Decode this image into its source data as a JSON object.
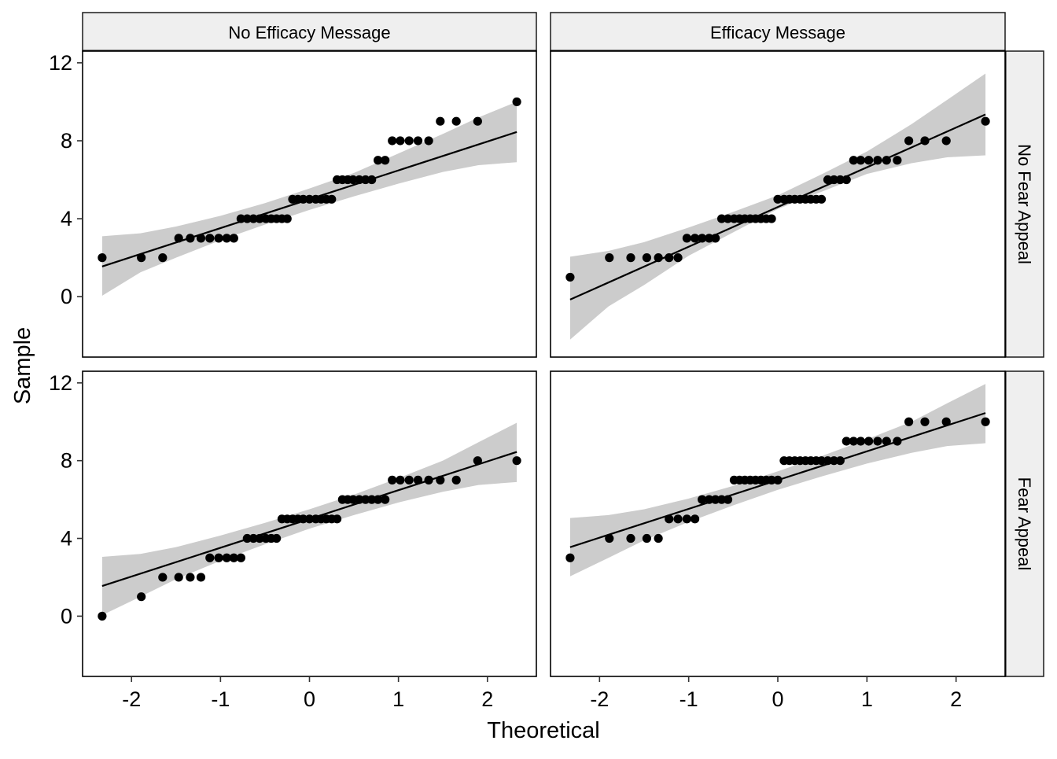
{
  "chart_data": {
    "type": "scatter",
    "kind": "qq-plot-faceted",
    "xlabel": "Theoretical",
    "ylabel": "Sample",
    "xlim": [
      -2.55,
      2.55
    ],
    "ylim": [
      -3.1,
      12.6
    ],
    "xticks": [
      -2,
      -1,
      0,
      1,
      2
    ],
    "xtick_labels": [
      "-2",
      "-1",
      "0",
      "1",
      "2"
    ],
    "yticks": [
      0,
      4,
      8,
      12
    ],
    "ytick_labels": [
      "0",
      "4",
      "8",
      "12"
    ],
    "column_strips": [
      "No Efficacy Message",
      "Efficacy Message"
    ],
    "row_strips": [
      "No Fear Appeal",
      "Fear Appeal"
    ],
    "grid": false,
    "colors": {
      "points": "#000000",
      "line": "#000000",
      "band": "#cccccc",
      "strip_fill": "#efefef",
      "panel_border": "#000000"
    },
    "panels": [
      {
        "row": 0,
        "col": 0,
        "x": [
          -2.33,
          -1.89,
          -1.65,
          -1.47,
          -1.34,
          -1.22,
          -1.12,
          -1.02,
          -0.93,
          -0.85,
          -0.77,
          -0.7,
          -0.63,
          -0.56,
          -0.49,
          -0.43,
          -0.37,
          -0.31,
          -0.25,
          -0.19,
          -0.13,
          -0.07,
          0.0,
          0.07,
          0.13,
          0.19,
          0.25,
          0.31,
          0.37,
          0.43,
          0.49,
          0.56,
          0.63,
          0.7,
          0.77,
          0.85,
          0.93,
          1.02,
          1.12,
          1.22,
          1.34,
          1.47,
          1.65,
          1.89,
          2.33
        ],
        "y": [
          2,
          2,
          2,
          3,
          3,
          3,
          3,
          3,
          3,
          3,
          4,
          4,
          4,
          4,
          4,
          4,
          4,
          4,
          4,
          5,
          5,
          5,
          5,
          5,
          5,
          5,
          5,
          6,
          6,
          6,
          6,
          6,
          6,
          6,
          7,
          7,
          8,
          8,
          8,
          8,
          8,
          9,
          9,
          9,
          10
        ],
        "line": [
          [
            -2.33,
            1.55
          ],
          [
            2.33,
            8.45
          ]
        ],
        "band_upper": [
          [
            -2.33,
            3.1
          ],
          [
            -1.9,
            3.25
          ],
          [
            -1.5,
            3.6
          ],
          [
            -1.0,
            4.15
          ],
          [
            -0.5,
            4.8
          ],
          [
            0.0,
            5.55
          ],
          [
            0.5,
            6.35
          ],
          [
            1.0,
            7.35
          ],
          [
            1.5,
            8.35
          ],
          [
            1.9,
            9.2
          ],
          [
            2.33,
            10.0
          ]
        ],
        "band_lower": [
          [
            -2.33,
            0.05
          ],
          [
            -1.9,
            1.25
          ],
          [
            -1.5,
            2.0
          ],
          [
            -1.0,
            2.9
          ],
          [
            -0.5,
            3.7
          ],
          [
            0.0,
            4.45
          ],
          [
            0.5,
            5.15
          ],
          [
            1.0,
            5.8
          ],
          [
            1.5,
            6.4
          ],
          [
            1.9,
            6.75
          ],
          [
            2.33,
            6.9
          ]
        ]
      },
      {
        "row": 0,
        "col": 1,
        "x": [
          -2.33,
          -1.89,
          -1.65,
          -1.47,
          -1.34,
          -1.22,
          -1.12,
          -1.02,
          -0.93,
          -0.85,
          -0.77,
          -0.7,
          -0.63,
          -0.56,
          -0.49,
          -0.43,
          -0.37,
          -0.31,
          -0.25,
          -0.19,
          -0.13,
          -0.07,
          0.0,
          0.07,
          0.13,
          0.19,
          0.25,
          0.31,
          0.37,
          0.43,
          0.49,
          0.56,
          0.63,
          0.7,
          0.77,
          0.85,
          0.93,
          1.02,
          1.12,
          1.22,
          1.34,
          1.47,
          1.65,
          1.89,
          2.33
        ],
        "y": [
          1,
          2,
          2,
          2,
          2,
          2,
          2,
          3,
          3,
          3,
          3,
          3,
          4,
          4,
          4,
          4,
          4,
          4,
          4,
          4,
          4,
          4,
          5,
          5,
          5,
          5,
          5,
          5,
          5,
          5,
          5,
          6,
          6,
          6,
          6,
          7,
          7,
          7,
          7,
          7,
          7,
          8,
          8,
          8,
          9
        ],
        "line": [
          [
            -2.33,
            -0.15
          ],
          [
            2.33,
            9.35
          ]
        ],
        "band_upper": [
          [
            -2.33,
            2.05
          ],
          [
            -1.9,
            2.35
          ],
          [
            -1.5,
            2.8
          ],
          [
            -1.0,
            3.55
          ],
          [
            -0.5,
            4.35
          ],
          [
            0.0,
            5.2
          ],
          [
            0.5,
            6.3
          ],
          [
            1.0,
            7.45
          ],
          [
            1.5,
            8.85
          ],
          [
            1.9,
            10.1
          ],
          [
            2.33,
            11.45
          ]
        ],
        "band_lower": [
          [
            -2.33,
            -2.2
          ],
          [
            -1.9,
            -0.5
          ],
          [
            -1.5,
            0.6
          ],
          [
            -1.0,
            2.1
          ],
          [
            -0.5,
            3.3
          ],
          [
            0.0,
            4.5
          ],
          [
            0.5,
            5.4
          ],
          [
            1.0,
            6.3
          ],
          [
            1.5,
            6.85
          ],
          [
            1.9,
            7.15
          ],
          [
            2.33,
            7.25
          ]
        ]
      },
      {
        "row": 1,
        "col": 0,
        "x": [
          -2.33,
          -1.89,
          -1.65,
          -1.47,
          -1.34,
          -1.22,
          -1.12,
          -1.02,
          -0.93,
          -0.85,
          -0.77,
          -0.7,
          -0.63,
          -0.56,
          -0.49,
          -0.43,
          -0.37,
          -0.31,
          -0.25,
          -0.19,
          -0.13,
          -0.07,
          0.0,
          0.07,
          0.13,
          0.19,
          0.25,
          0.31,
          0.37,
          0.43,
          0.49,
          0.56,
          0.63,
          0.7,
          0.77,
          0.85,
          0.93,
          1.02,
          1.12,
          1.22,
          1.34,
          1.47,
          1.65,
          1.89,
          2.33
        ],
        "y": [
          0,
          1,
          2,
          2,
          2,
          2,
          3,
          3,
          3,
          3,
          3,
          4,
          4,
          4,
          4,
          4,
          4,
          5,
          5,
          5,
          5,
          5,
          5,
          5,
          5,
          5,
          5,
          5,
          6,
          6,
          6,
          6,
          6,
          6,
          6,
          6,
          7,
          7,
          7,
          7,
          7,
          7,
          7,
          8,
          8
        ],
        "line": [
          [
            -2.33,
            1.55
          ],
          [
            2.33,
            8.45
          ]
        ],
        "band_upper": [
          [
            -2.33,
            3.05
          ],
          [
            -1.9,
            3.2
          ],
          [
            -1.5,
            3.55
          ],
          [
            -1.0,
            4.15
          ],
          [
            -0.5,
            4.8
          ],
          [
            0.0,
            5.5
          ],
          [
            0.5,
            6.25
          ],
          [
            1.0,
            7.1
          ],
          [
            1.5,
            8.0
          ],
          [
            1.9,
            8.95
          ],
          [
            2.33,
            9.95
          ]
        ],
        "band_lower": [
          [
            -2.33,
            0.05
          ],
          [
            -1.9,
            1.0
          ],
          [
            -1.5,
            1.9
          ],
          [
            -1.0,
            2.85
          ],
          [
            -0.5,
            3.7
          ],
          [
            0.0,
            4.5
          ],
          [
            0.5,
            5.2
          ],
          [
            1.0,
            5.85
          ],
          [
            1.5,
            6.4
          ],
          [
            1.9,
            6.75
          ],
          [
            2.33,
            6.9
          ]
        ]
      },
      {
        "row": 1,
        "col": 1,
        "x": [
          -2.33,
          -1.89,
          -1.65,
          -1.47,
          -1.34,
          -1.22,
          -1.12,
          -1.02,
          -0.93,
          -0.85,
          -0.77,
          -0.7,
          -0.63,
          -0.56,
          -0.49,
          -0.43,
          -0.37,
          -0.31,
          -0.25,
          -0.19,
          -0.13,
          -0.07,
          0.0,
          0.07,
          0.13,
          0.19,
          0.25,
          0.31,
          0.37,
          0.43,
          0.49,
          0.56,
          0.63,
          0.7,
          0.77,
          0.85,
          0.93,
          1.02,
          1.12,
          1.22,
          1.34,
          1.47,
          1.65,
          1.89,
          2.33
        ],
        "y": [
          3,
          4,
          4,
          4,
          4,
          5,
          5,
          5,
          5,
          6,
          6,
          6,
          6,
          6,
          7,
          7,
          7,
          7,
          7,
          7,
          7,
          7,
          7,
          8,
          8,
          8,
          8,
          8,
          8,
          8,
          8,
          8,
          8,
          8,
          9,
          9,
          9,
          9,
          9,
          9,
          9,
          10,
          10,
          10,
          10
        ],
        "line": [
          [
            -2.33,
            3.55
          ],
          [
            2.33,
            10.45
          ]
        ],
        "band_upper": [
          [
            -2.33,
            5.05
          ],
          [
            -1.9,
            5.2
          ],
          [
            -1.5,
            5.5
          ],
          [
            -1.0,
            6.05
          ],
          [
            -0.5,
            6.7
          ],
          [
            0.0,
            7.45
          ],
          [
            0.5,
            8.25
          ],
          [
            1.0,
            9.1
          ],
          [
            1.5,
            10.0
          ],
          [
            1.9,
            10.95
          ],
          [
            2.33,
            11.95
          ]
        ],
        "band_lower": [
          [
            -2.33,
            2.05
          ],
          [
            -1.9,
            3.0
          ],
          [
            -1.5,
            3.9
          ],
          [
            -1.0,
            4.85
          ],
          [
            -0.5,
            5.7
          ],
          [
            0.0,
            6.5
          ],
          [
            0.5,
            7.2
          ],
          [
            1.0,
            7.85
          ],
          [
            1.5,
            8.4
          ],
          [
            1.9,
            8.75
          ],
          [
            2.33,
            8.9
          ]
        ]
      }
    ]
  }
}
